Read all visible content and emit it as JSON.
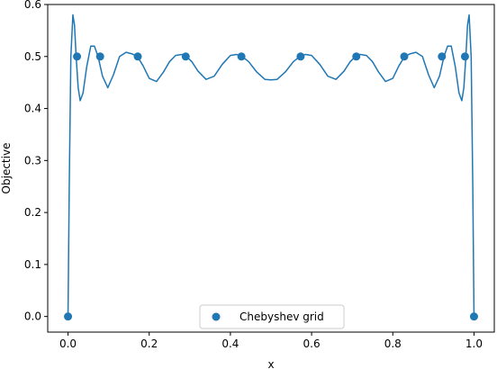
{
  "chart_data": {
    "type": "line",
    "xlabel": "x",
    "ylabel": "Objective",
    "xlim": [
      -0.05,
      1.05
    ],
    "ylim": [
      -0.03,
      0.6
    ],
    "x_ticks": [
      0.0,
      0.2,
      0.4,
      0.6,
      0.8,
      1.0
    ],
    "x_tick_labels": [
      "0.0",
      "0.2",
      "0.4",
      "0.6",
      "0.8",
      "1.0"
    ],
    "y_ticks": [
      0.0,
      0.1,
      0.2,
      0.3,
      0.4,
      0.5,
      0.6
    ],
    "y_tick_labels": [
      "0.0",
      "0.1",
      "0.2",
      "0.3",
      "0.4",
      "0.5",
      "0.6"
    ],
    "grid": false,
    "legend_position": "bottom-center",
    "series": [
      {
        "kind": "line",
        "color": "#1f77b4",
        "x": [
          0.0,
          0.003,
          0.007,
          0.012,
          0.016,
          0.02,
          0.025,
          0.03,
          0.037,
          0.046,
          0.056,
          0.065,
          0.074,
          0.085,
          0.098,
          0.112,
          0.127,
          0.143,
          0.158,
          0.171,
          0.185,
          0.2,
          0.218,
          0.235,
          0.25,
          0.265,
          0.28,
          0.292,
          0.305,
          0.32,
          0.34,
          0.36,
          0.38,
          0.4,
          0.415,
          0.429,
          0.445,
          0.465,
          0.485,
          0.5,
          0.515,
          0.535,
          0.555,
          0.571,
          0.585,
          0.6,
          0.62,
          0.64,
          0.66,
          0.68,
          0.695,
          0.708,
          0.72,
          0.735,
          0.75,
          0.765,
          0.782,
          0.8,
          0.815,
          0.829,
          0.842,
          0.857,
          0.873,
          0.888,
          0.902,
          0.915,
          0.926,
          0.935,
          0.944,
          0.954,
          0.963,
          0.97,
          0.975,
          0.98,
          0.984,
          0.988,
          0.993,
          0.997,
          1.0
        ],
        "y": [
          0.0,
          0.25,
          0.5,
          0.58,
          0.56,
          0.5,
          0.44,
          0.415,
          0.43,
          0.48,
          0.52,
          0.52,
          0.5,
          0.462,
          0.44,
          0.465,
          0.5,
          0.508,
          0.505,
          0.5,
          0.482,
          0.458,
          0.452,
          0.47,
          0.49,
          0.502,
          0.504,
          0.5,
          0.49,
          0.472,
          0.456,
          0.462,
          0.485,
          0.502,
          0.504,
          0.5,
          0.49,
          0.47,
          0.456,
          0.455,
          0.456,
          0.47,
          0.49,
          0.5,
          0.504,
          0.502,
          0.485,
          0.462,
          0.456,
          0.472,
          0.49,
          0.5,
          0.504,
          0.502,
          0.49,
          0.47,
          0.452,
          0.458,
          0.482,
          0.5,
          0.505,
          0.508,
          0.5,
          0.465,
          0.44,
          0.462,
          0.5,
          0.52,
          0.52,
          0.48,
          0.43,
          0.415,
          0.44,
          0.5,
          0.56,
          0.58,
          0.5,
          0.25,
          0.0
        ]
      },
      {
        "kind": "scatter",
        "name": "Chebyshev grid",
        "color": "#1f77b4",
        "x": [
          0.0,
          0.0222,
          0.0791,
          0.1718,
          0.2899,
          0.4271,
          0.5729,
          0.7101,
          0.8282,
          0.9209,
          0.9778,
          1.0
        ],
        "y": [
          0.0,
          0.5,
          0.5,
          0.5,
          0.5,
          0.5,
          0.5,
          0.5,
          0.5,
          0.5,
          0.5,
          0.0
        ]
      }
    ]
  }
}
